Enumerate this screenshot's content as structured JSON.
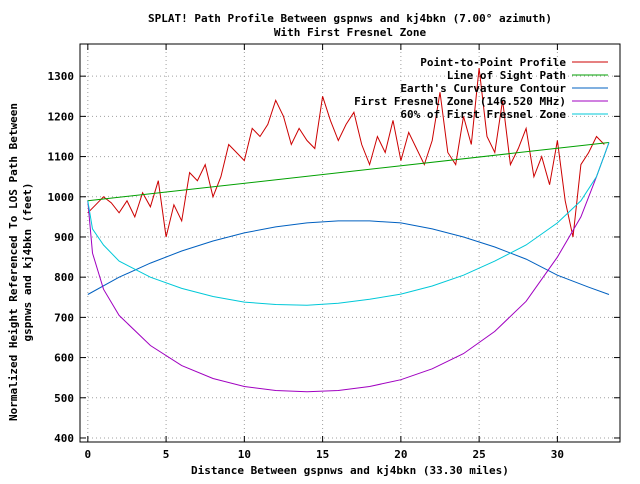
{
  "chart_data": {
    "type": "line",
    "title": "SPLAT! Path Profile Between gspnws and kj4bkn (7.00° azimuth)",
    "subtitle": "With First Fresnel Zone",
    "xlabel": "Distance Between gspnws and kj4bkn (33.30 miles)",
    "ylabel": "Normalized Height Referenced To LOS Path Between gspnws and kj4bkn (feet)",
    "ylabel_lines": [
      "Normalized Height Referenced To LOS Path Between",
      "gspnws and kj4bkn (feet)"
    ],
    "xlim": [
      -0.5,
      34
    ],
    "ylim": [
      390,
      1380
    ],
    "x_ticks": [
      0,
      5,
      10,
      15,
      20,
      25,
      30
    ],
    "y_ticks": [
      400,
      500,
      600,
      700,
      800,
      900,
      1000,
      1100,
      1200,
      1300
    ],
    "grid": true,
    "legend_position": "top-right",
    "series": [
      {
        "name": "Point-to-Point Profile",
        "color": "#cc0000",
        "x": [
          0,
          0.5,
          1,
          1.5,
          2,
          2.5,
          3,
          3.5,
          4,
          4.5,
          5,
          5.5,
          6,
          6.5,
          7,
          7.5,
          8,
          8.5,
          9,
          9.5,
          10,
          10.5,
          11,
          11.5,
          12,
          12.5,
          13,
          13.5,
          14,
          14.5,
          15,
          15.5,
          16,
          16.5,
          17,
          17.5,
          18,
          18.5,
          19,
          19.5,
          20,
          20.5,
          21,
          21.5,
          22,
          22.5,
          23,
          23.5,
          24,
          24.5,
          25,
          25.5,
          26,
          26.5,
          27,
          27.5,
          28,
          28.5,
          29,
          29.5,
          30,
          30.5,
          31,
          31.5,
          32,
          32.5,
          33
        ],
        "values": [
          960,
          980,
          1000,
          985,
          960,
          990,
          950,
          1010,
          975,
          1040,
          900,
          980,
          940,
          1060,
          1040,
          1080,
          1000,
          1050,
          1130,
          1110,
          1090,
          1170,
          1150,
          1180,
          1240,
          1200,
          1130,
          1170,
          1140,
          1120,
          1250,
          1190,
          1140,
          1180,
          1210,
          1130,
          1080,
          1150,
          1110,
          1190,
          1090,
          1160,
          1120,
          1080,
          1140,
          1260,
          1110,
          1080,
          1200,
          1130,
          1320,
          1150,
          1110,
          1240,
          1080,
          1120,
          1170,
          1050,
          1100,
          1030,
          1140,
          990,
          900,
          1080,
          1110,
          1150,
          1130
        ],
        "data_label": null
      },
      {
        "name": "Line of Sight Path",
        "color": "#00a000",
        "x": [
          0,
          33.3
        ],
        "values": [
          990,
          1135
        ]
      },
      {
        "name": "Earth's Curvature Contour",
        "color": "#0060c0",
        "x": [
          0,
          2,
          4,
          6,
          8,
          10,
          12,
          14,
          16,
          18,
          20,
          22,
          24,
          26,
          28,
          30,
          32,
          33.3
        ],
        "values": [
          757,
          800,
          835,
          865,
          890,
          910,
          925,
          935,
          940,
          940,
          935,
          920,
          900,
          875,
          845,
          805,
          775,
          757
        ]
      },
      {
        "name": "First Fresnel Zone (146.520 MHz)",
        "color": "#a000c0",
        "x": [
          0,
          0.3,
          1,
          2,
          4,
          6,
          8,
          10,
          12,
          14,
          16,
          18,
          20,
          22,
          24,
          26,
          28,
          30,
          31.5,
          32.5,
          33.3
        ],
        "values": [
          990,
          860,
          770,
          705,
          630,
          580,
          548,
          528,
          518,
          515,
          518,
          528,
          545,
          572,
          610,
          665,
          740,
          850,
          950,
          1050,
          1135
        ]
      },
      {
        "name": "60% of First Fresnel Zone",
        "color": "#00c8d8",
        "x": [
          0,
          0.3,
          1,
          2,
          4,
          6,
          8,
          10,
          12,
          14,
          16,
          18,
          20,
          22,
          24,
          26,
          28,
          30,
          31.5,
          32.5,
          33.3
        ],
        "values": [
          990,
          920,
          880,
          840,
          800,
          772,
          752,
          738,
          732,
          730,
          735,
          745,
          758,
          778,
          805,
          840,
          880,
          935,
          990,
          1050,
          1135
        ]
      }
    ]
  }
}
